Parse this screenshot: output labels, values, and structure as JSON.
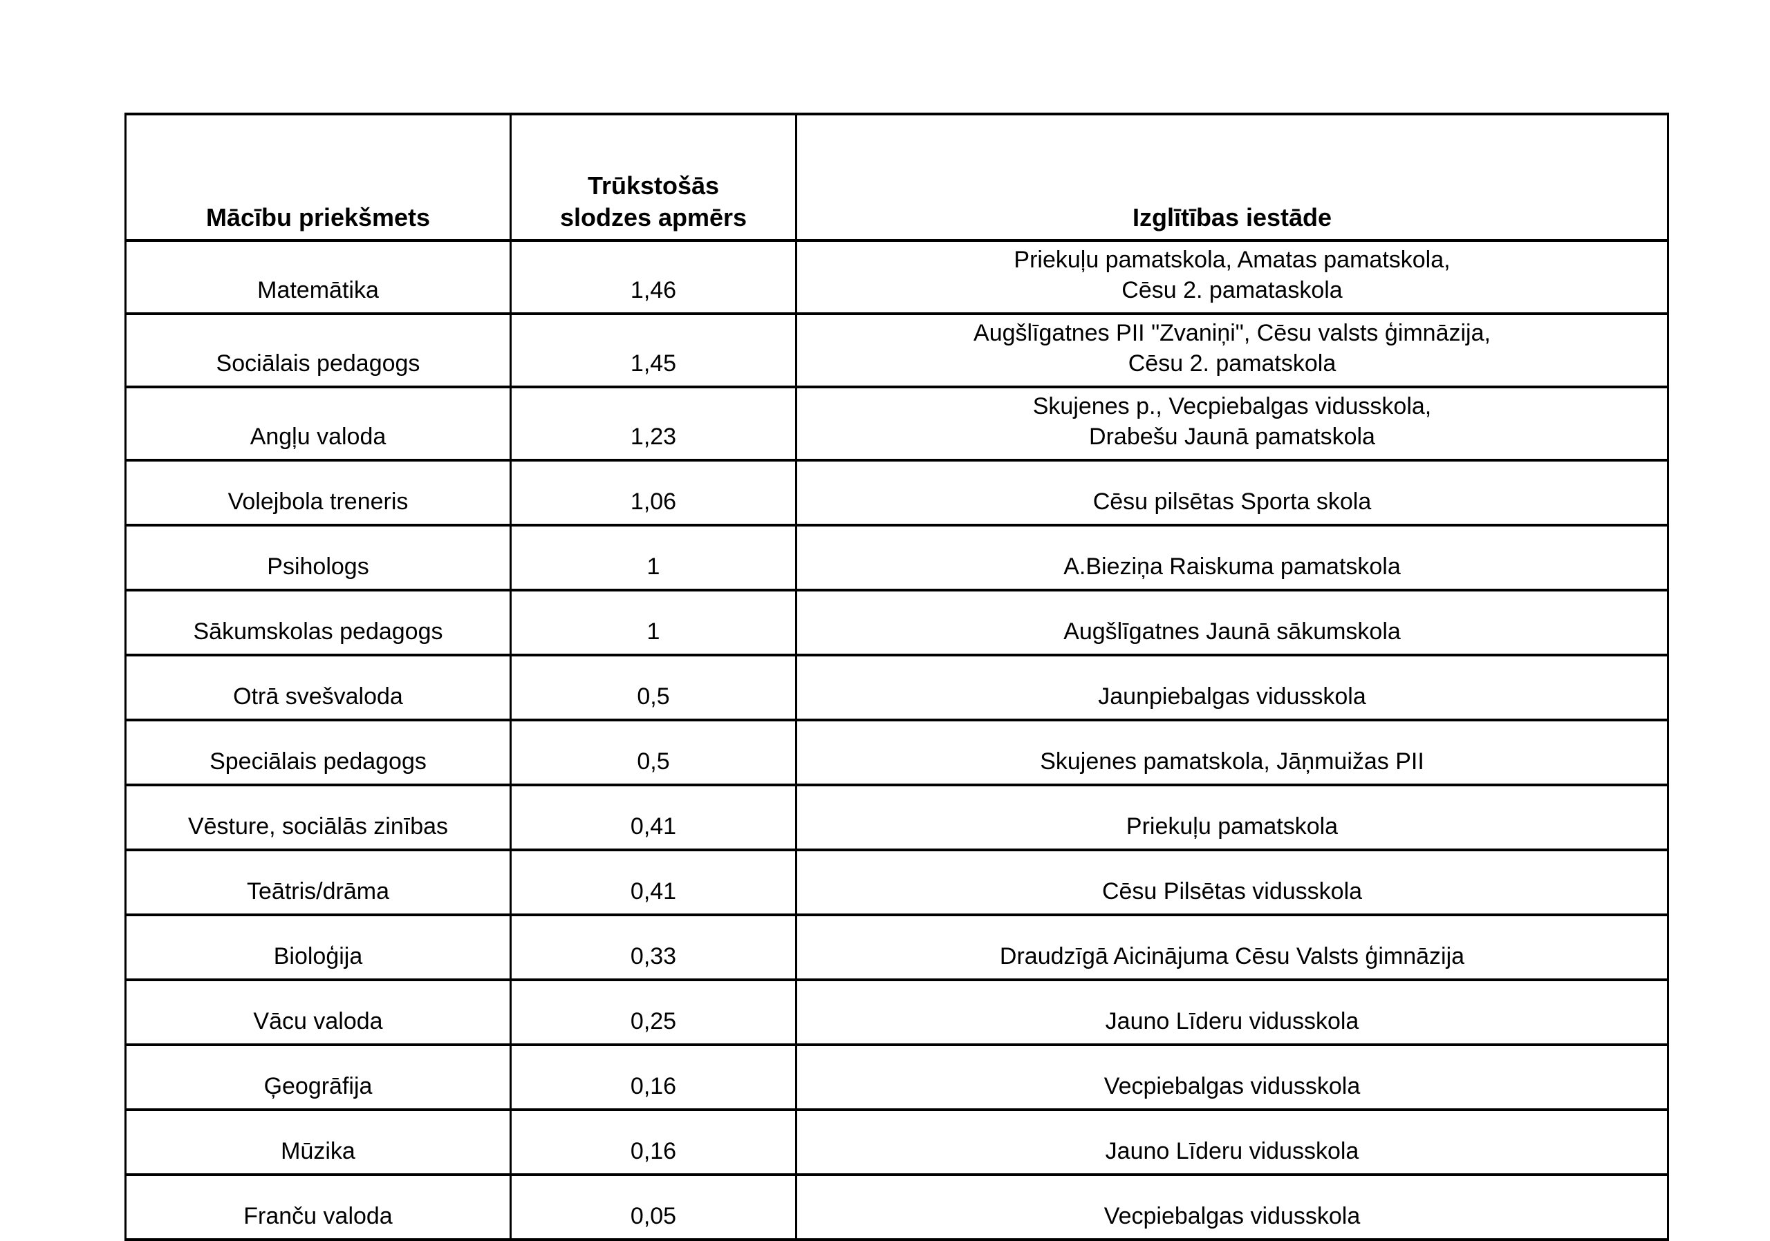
{
  "colors": {
    "text": "#000000",
    "border": "#000000",
    "background": "#ffffff"
  },
  "table": {
    "headers": {
      "subject": "Mācību priekšmets",
      "workload": "Trūkstošās\nslodzes apmērs",
      "institution": "Izglītības iestāde"
    },
    "rows": [
      {
        "subject": "Matemātika",
        "workload": "1,46",
        "institution": "Priekuļu pamatskola, Amatas pamatskola,\nCēsu 2. pamataskola"
      },
      {
        "subject": "Sociālais pedagogs",
        "workload": "1,45",
        "institution": "Augšlīgatnes PII \"Zvaniņi\", Cēsu valsts ģimnāzija,\nCēsu 2. pamatskola"
      },
      {
        "subject": "Angļu valoda",
        "workload": "1,23",
        "institution": "Skujenes p., Vecpiebalgas vidusskola,\nDrabešu Jaunā pamatskola"
      },
      {
        "subject": "Volejbola treneris",
        "workload": "1,06",
        "institution": "Cēsu pilsētas Sporta skola"
      },
      {
        "subject": "Psihologs",
        "workload": "1",
        "institution": "A.Bieziņa Raiskuma pamatskola"
      },
      {
        "subject": "Sākumskolas pedagogs",
        "workload": "1",
        "institution": "Augšlīgatnes Jaunā sākumskola"
      },
      {
        "subject": "Otrā svešvaloda",
        "workload": "0,5",
        "institution": "Jaunpiebalgas vidusskola"
      },
      {
        "subject": "Speciālais pedagogs",
        "workload": "0,5",
        "institution": "Skujenes pamatskola, Jāņmuižas PII"
      },
      {
        "subject": "Vēsture, sociālās zinības",
        "workload": "0,41",
        "institution": "Priekuļu pamatskola"
      },
      {
        "subject": "Teātris/drāma",
        "workload": "0,41",
        "institution": "Cēsu Pilsētas vidusskola"
      },
      {
        "subject": "Bioloģija",
        "workload": "0,33",
        "institution": "Draudzīgā Aicinājuma Cēsu Valsts ģimnāzija"
      },
      {
        "subject": "Vācu valoda",
        "workload": "0,25",
        "institution": "Jauno Līderu vidusskola"
      },
      {
        "subject": "Ģeogrāfija",
        "workload": "0,16",
        "institution": "Vecpiebalgas vidusskola"
      },
      {
        "subject": "Mūzika",
        "workload": "0,16",
        "institution": "Jauno Līderu vidusskola"
      },
      {
        "subject": "Franču valoda",
        "workload": "0,05",
        "institution": "Vecpiebalgas vidusskola"
      }
    ]
  }
}
